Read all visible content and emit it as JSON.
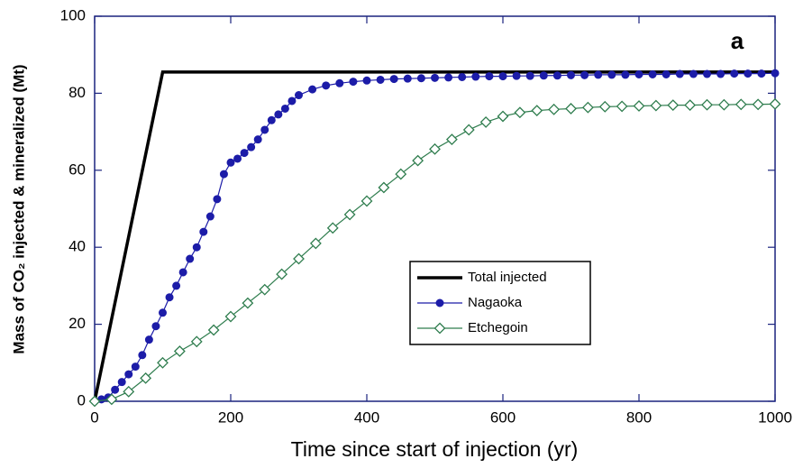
{
  "chart_data": {
    "type": "line",
    "xlabel": "Time since start of injection (yr)",
    "ylabel": "Mass of CO₂ injected & mineralized (Mt)",
    "annotation": "a",
    "xlim": [
      0,
      1000
    ],
    "xticks": [
      0,
      200,
      400,
      600,
      800,
      1000
    ],
    "ylim": [
      0,
      100
    ],
    "yticks": [
      0,
      20,
      40,
      60,
      80,
      100
    ],
    "grid": false,
    "legend": "lower right",
    "series": [
      {
        "name": "Total injected",
        "color": "#000000",
        "marker": "none",
        "x": [
          0,
          100,
          1000
        ],
        "values": [
          0,
          85.5,
          85.5
        ]
      },
      {
        "name": "Nagaoka",
        "color": "#1c1ca8",
        "marker": "circle",
        "x": [
          0,
          10,
          20,
          30,
          40,
          50,
          60,
          70,
          80,
          90,
          100,
          110,
          120,
          130,
          140,
          150,
          160,
          170,
          180,
          190,
          200,
          210,
          220,
          230,
          240,
          250,
          260,
          270,
          280,
          290,
          300,
          320,
          340,
          360,
          380,
          400,
          420,
          440,
          460,
          480,
          500,
          520,
          540,
          560,
          580,
          600,
          620,
          640,
          660,
          680,
          700,
          720,
          740,
          760,
          780,
          800,
          820,
          840,
          860,
          880,
          900,
          920,
          940,
          960,
          980,
          1000
        ],
        "values": [
          0,
          0.5,
          1,
          3,
          5,
          7,
          9,
          12,
          16,
          19.5,
          23,
          27,
          30,
          33.5,
          37,
          40,
          44,
          48,
          52.5,
          59,
          62,
          63,
          64.5,
          66,
          68,
          70.5,
          73,
          74.5,
          76,
          78,
          79.5,
          81,
          82,
          82.6,
          83,
          83.3,
          83.5,
          83.7,
          83.8,
          83.9,
          84,
          84.1,
          84.2,
          84.3,
          84.4,
          84.4,
          84.5,
          84.5,
          84.6,
          84.6,
          84.7,
          84.7,
          84.8,
          84.8,
          84.8,
          84.9,
          84.9,
          84.9,
          85,
          85,
          85,
          85,
          85.1,
          85.1,
          85.1,
          85.2
        ]
      },
      {
        "name": "Etchegoin",
        "color": "#2f7d4e",
        "marker": "diamond",
        "x": [
          0,
          25,
          50,
          75,
          100,
          125,
          150,
          175,
          200,
          225,
          250,
          275,
          300,
          325,
          350,
          375,
          400,
          425,
          450,
          475,
          500,
          525,
          550,
          575,
          600,
          625,
          650,
          675,
          700,
          725,
          750,
          775,
          800,
          825,
          850,
          875,
          900,
          925,
          950,
          975,
          1000
        ],
        "values": [
          0,
          0.5,
          2.5,
          6,
          10,
          13,
          15.5,
          18.5,
          22,
          25.5,
          29,
          33,
          37,
          41,
          45,
          48.5,
          52,
          55.5,
          59,
          62.5,
          65.5,
          68,
          70.5,
          72.5,
          74,
          75,
          75.5,
          75.8,
          76,
          76.3,
          76.5,
          76.6,
          76.7,
          76.8,
          76.9,
          76.9,
          77,
          77,
          77.1,
          77.1,
          77.2
        ]
      }
    ]
  }
}
